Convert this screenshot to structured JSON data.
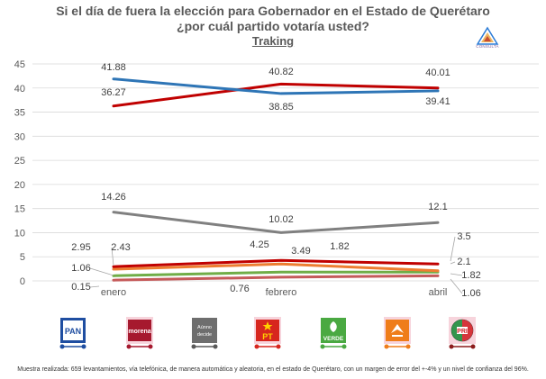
{
  "title_line1": "Si el día de fuera la elección para Gobernador en el Estado de Querétaro",
  "title_line2": "¿por cuál partido votaría usted?",
  "subtitle": "Traking",
  "logo_text": "CONSULTA",
  "footnote": "Muestra realizada: 659 levantamientos, vía telefónica, de manera automática y aleatoria, en el estado de Querétaro, con un margen de error del +-4% y un nivel de confianza del 96%.",
  "legend": [
    {
      "key": "PAN",
      "label": "PAN",
      "color": "#1f77b4"
    },
    {
      "key": "MORENA",
      "label": "morena",
      "color": "#c00000"
    },
    {
      "key": "UNNO",
      "label": "Aúnno decide",
      "color": "#7f7f7f"
    },
    {
      "key": "PT",
      "label": "PT",
      "color": "#d62728"
    },
    {
      "key": "VERDE",
      "label": "VERDE",
      "color": "#2ca02c"
    },
    {
      "key": "MC",
      "label": "MC",
      "color": "#e07b19"
    },
    {
      "key": "PRI",
      "label": "PRI",
      "color": "#8c1c1c"
    }
  ],
  "chart_data": {
    "type": "line",
    "categories": [
      "enero",
      "febrero",
      "abril"
    ],
    "ylim": [
      0,
      45
    ],
    "yticks": [
      0,
      5,
      10,
      15,
      20,
      25,
      30,
      35,
      40,
      45
    ],
    "grid": true,
    "series": [
      {
        "key": "PAN",
        "color": "#2e75b6",
        "values": [
          41.88,
          38.85,
          39.41
        ],
        "labels": [
          "41.88",
          "38.85",
          "39.41"
        ]
      },
      {
        "key": "MORENA",
        "color": "#c00000",
        "values": [
          36.27,
          40.82,
          40.01
        ],
        "labels": [
          "36.27",
          "40.82",
          "40.01"
        ]
      },
      {
        "key": "UNNO",
        "color": "#808080",
        "values": [
          14.26,
          10.02,
          12.1
        ],
        "labels": [
          "14.26",
          "10.02",
          "12.1"
        ]
      },
      {
        "key": "PT",
        "color": "#c00000",
        "values": [
          2.95,
          4.25,
          3.5
        ],
        "labels": [
          "2.95",
          "4.25",
          "3.5"
        ]
      },
      {
        "key": "MC",
        "color": "#ed7d31",
        "values": [
          2.43,
          3.49,
          2.1
        ],
        "labels": [
          "2.43",
          "3.49",
          "2.1"
        ]
      },
      {
        "key": "VERDE",
        "color": "#70ad47",
        "values": [
          1.06,
          1.82,
          1.82
        ],
        "labels": [
          "1.06",
          "1.82",
          "1.82"
        ]
      },
      {
        "key": "PRI",
        "color": "#c55a5a",
        "values": [
          0.15,
          0.76,
          1.06
        ],
        "labels": [
          "0.15",
          "0.76",
          "1.06"
        ]
      }
    ]
  }
}
